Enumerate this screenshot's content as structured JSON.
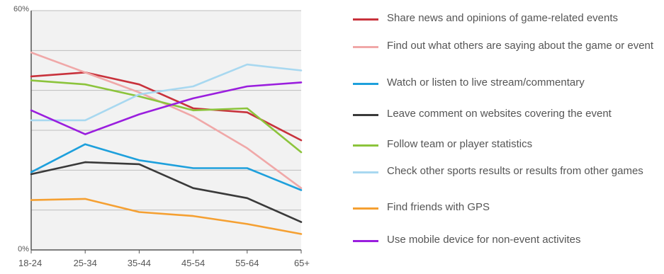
{
  "chart_data": {
    "type": "line",
    "categories": [
      "18-24",
      "25-34",
      "35-44",
      "45-54",
      "55-64",
      "65+"
    ],
    "ylim": [
      0,
      60
    ],
    "y_tick_labels": [
      "0%",
      "60%"
    ],
    "grid": true,
    "legend_position": "right",
    "series": [
      {
        "name": "Share news and opinions of game-related events",
        "color": "#c8323c",
        "values": [
          43.5,
          44.5,
          41.5,
          35.5,
          34.5,
          27.5
        ]
      },
      {
        "name": "Find out what others are saying about the game or event",
        "color": "#f0a8a8",
        "values": [
          49.5,
          44.5,
          39.5,
          33.5,
          25.5,
          15.5
        ]
      },
      {
        "name": "Watch or listen to live stream/commentary",
        "color": "#1ea0dc",
        "values": [
          19.5,
          26.5,
          22.5,
          20.5,
          20.5,
          15.0
        ]
      },
      {
        "name": "Leave comment on websites covering the event",
        "color": "#3a3a3a",
        "values": [
          19.0,
          22.0,
          21.5,
          15.5,
          13.0,
          7.0
        ]
      },
      {
        "name": "Follow team or player statistics",
        "color": "#8cc43c",
        "values": [
          42.5,
          41.5,
          38.5,
          35.0,
          35.5,
          24.5
        ]
      },
      {
        "name": "Check other sports results or results from other games",
        "color": "#a8d8f0",
        "values": [
          32.5,
          32.5,
          39.0,
          41.0,
          46.5,
          45.0
        ]
      },
      {
        "name": "Find friends with GPS",
        "color": "#f5a032",
        "values": [
          12.5,
          12.8,
          9.5,
          8.5,
          6.5,
          4.0
        ]
      },
      {
        "name": "Use mobile device for non-event activites",
        "color": "#9a1ede",
        "values": [
          35.0,
          29.0,
          34.0,
          38.0,
          41.0,
          42.0
        ]
      }
    ]
  }
}
